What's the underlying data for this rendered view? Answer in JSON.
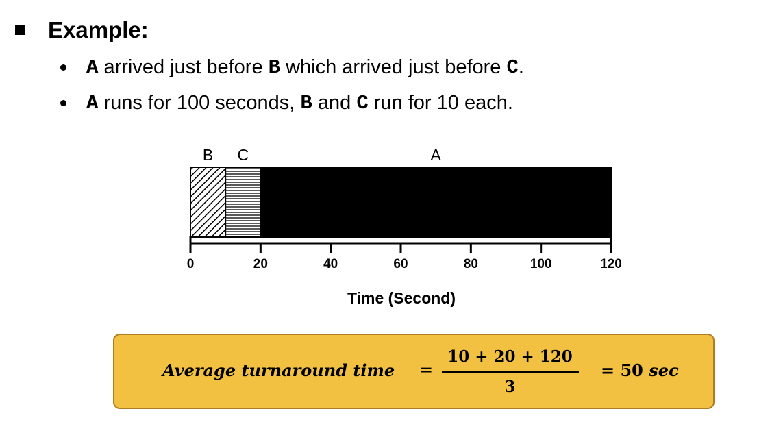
{
  "heading": "Example:",
  "bullets": [
    {
      "b1": "A",
      "t1": " arrived just before ",
      "b2": "B",
      "t2": " which arrived just before ",
      "b3": "C",
      "t3": "."
    },
    {
      "b1": "A",
      "t1": " runs for 100 seconds, ",
      "b2": "B",
      "t2": " and ",
      "b3": "C",
      "t3": " run for 10 each."
    }
  ],
  "chart_data": {
    "type": "gantt",
    "xlabel": "Time (Second)",
    "xlim": [
      0,
      120
    ],
    "ticks": [
      0,
      20,
      40,
      60,
      80,
      100,
      120
    ],
    "tasks": [
      {
        "name": "B",
        "start": 0,
        "end": 10,
        "pattern": "diagonal-hatch"
      },
      {
        "name": "C",
        "start": 10,
        "end": 20,
        "pattern": "horizontal-lines"
      },
      {
        "name": "A",
        "start": 20,
        "end": 120,
        "pattern": "solid-black"
      }
    ]
  },
  "formula": {
    "label": "Average turnaround time",
    "equals": "=",
    "numerator": "10 + 20 + 120",
    "denominator": "3",
    "result_prefix": "= 50 ",
    "result_unit": "sec"
  }
}
